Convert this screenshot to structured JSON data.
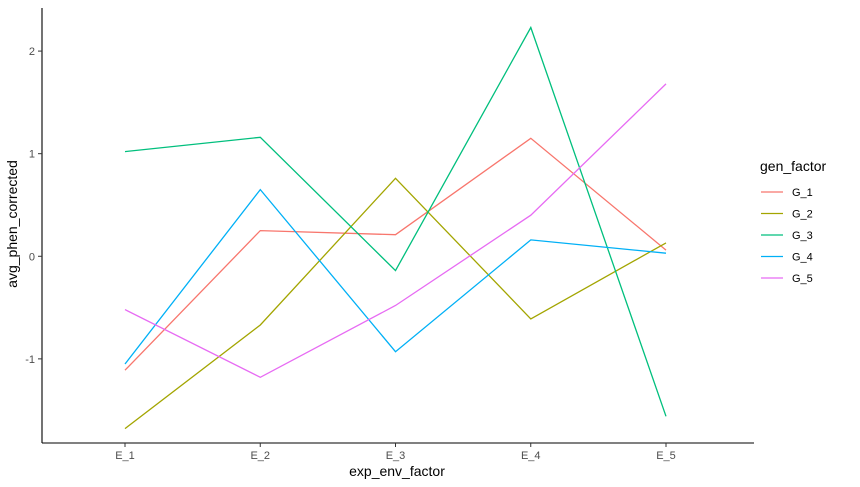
{
  "chart_data": {
    "type": "line",
    "xlabel": "exp_env_factor",
    "ylabel": "avg_phen_corrected",
    "categories": [
      "E_1",
      "E_2",
      "E_3",
      "E_4",
      "E_5"
    ],
    "y_ticks": [
      -1,
      0,
      1,
      2
    ],
    "ylim": [
      -1.82,
      2.42
    ],
    "grid": false,
    "legend": {
      "title": "gen_factor",
      "position": "right"
    },
    "series": [
      {
        "name": "G_1",
        "color": "#F8766D",
        "values": [
          -1.11,
          0.25,
          0.21,
          1.15,
          0.06
        ]
      },
      {
        "name": "G_2",
        "color": "#A3A500",
        "values": [
          -1.68,
          -0.67,
          0.76,
          -0.61,
          0.13
        ]
      },
      {
        "name": "G_3",
        "color": "#00BF7D",
        "values": [
          1.02,
          1.16,
          -0.14,
          2.23,
          -1.56
        ]
      },
      {
        "name": "G_4",
        "color": "#00B0F6",
        "values": [
          -1.05,
          0.65,
          -0.93,
          0.16,
          0.03
        ]
      },
      {
        "name": "G_5",
        "color": "#E76BF3",
        "values": [
          -0.52,
          -1.18,
          -0.48,
          0.4,
          1.68
        ]
      }
    ]
  }
}
